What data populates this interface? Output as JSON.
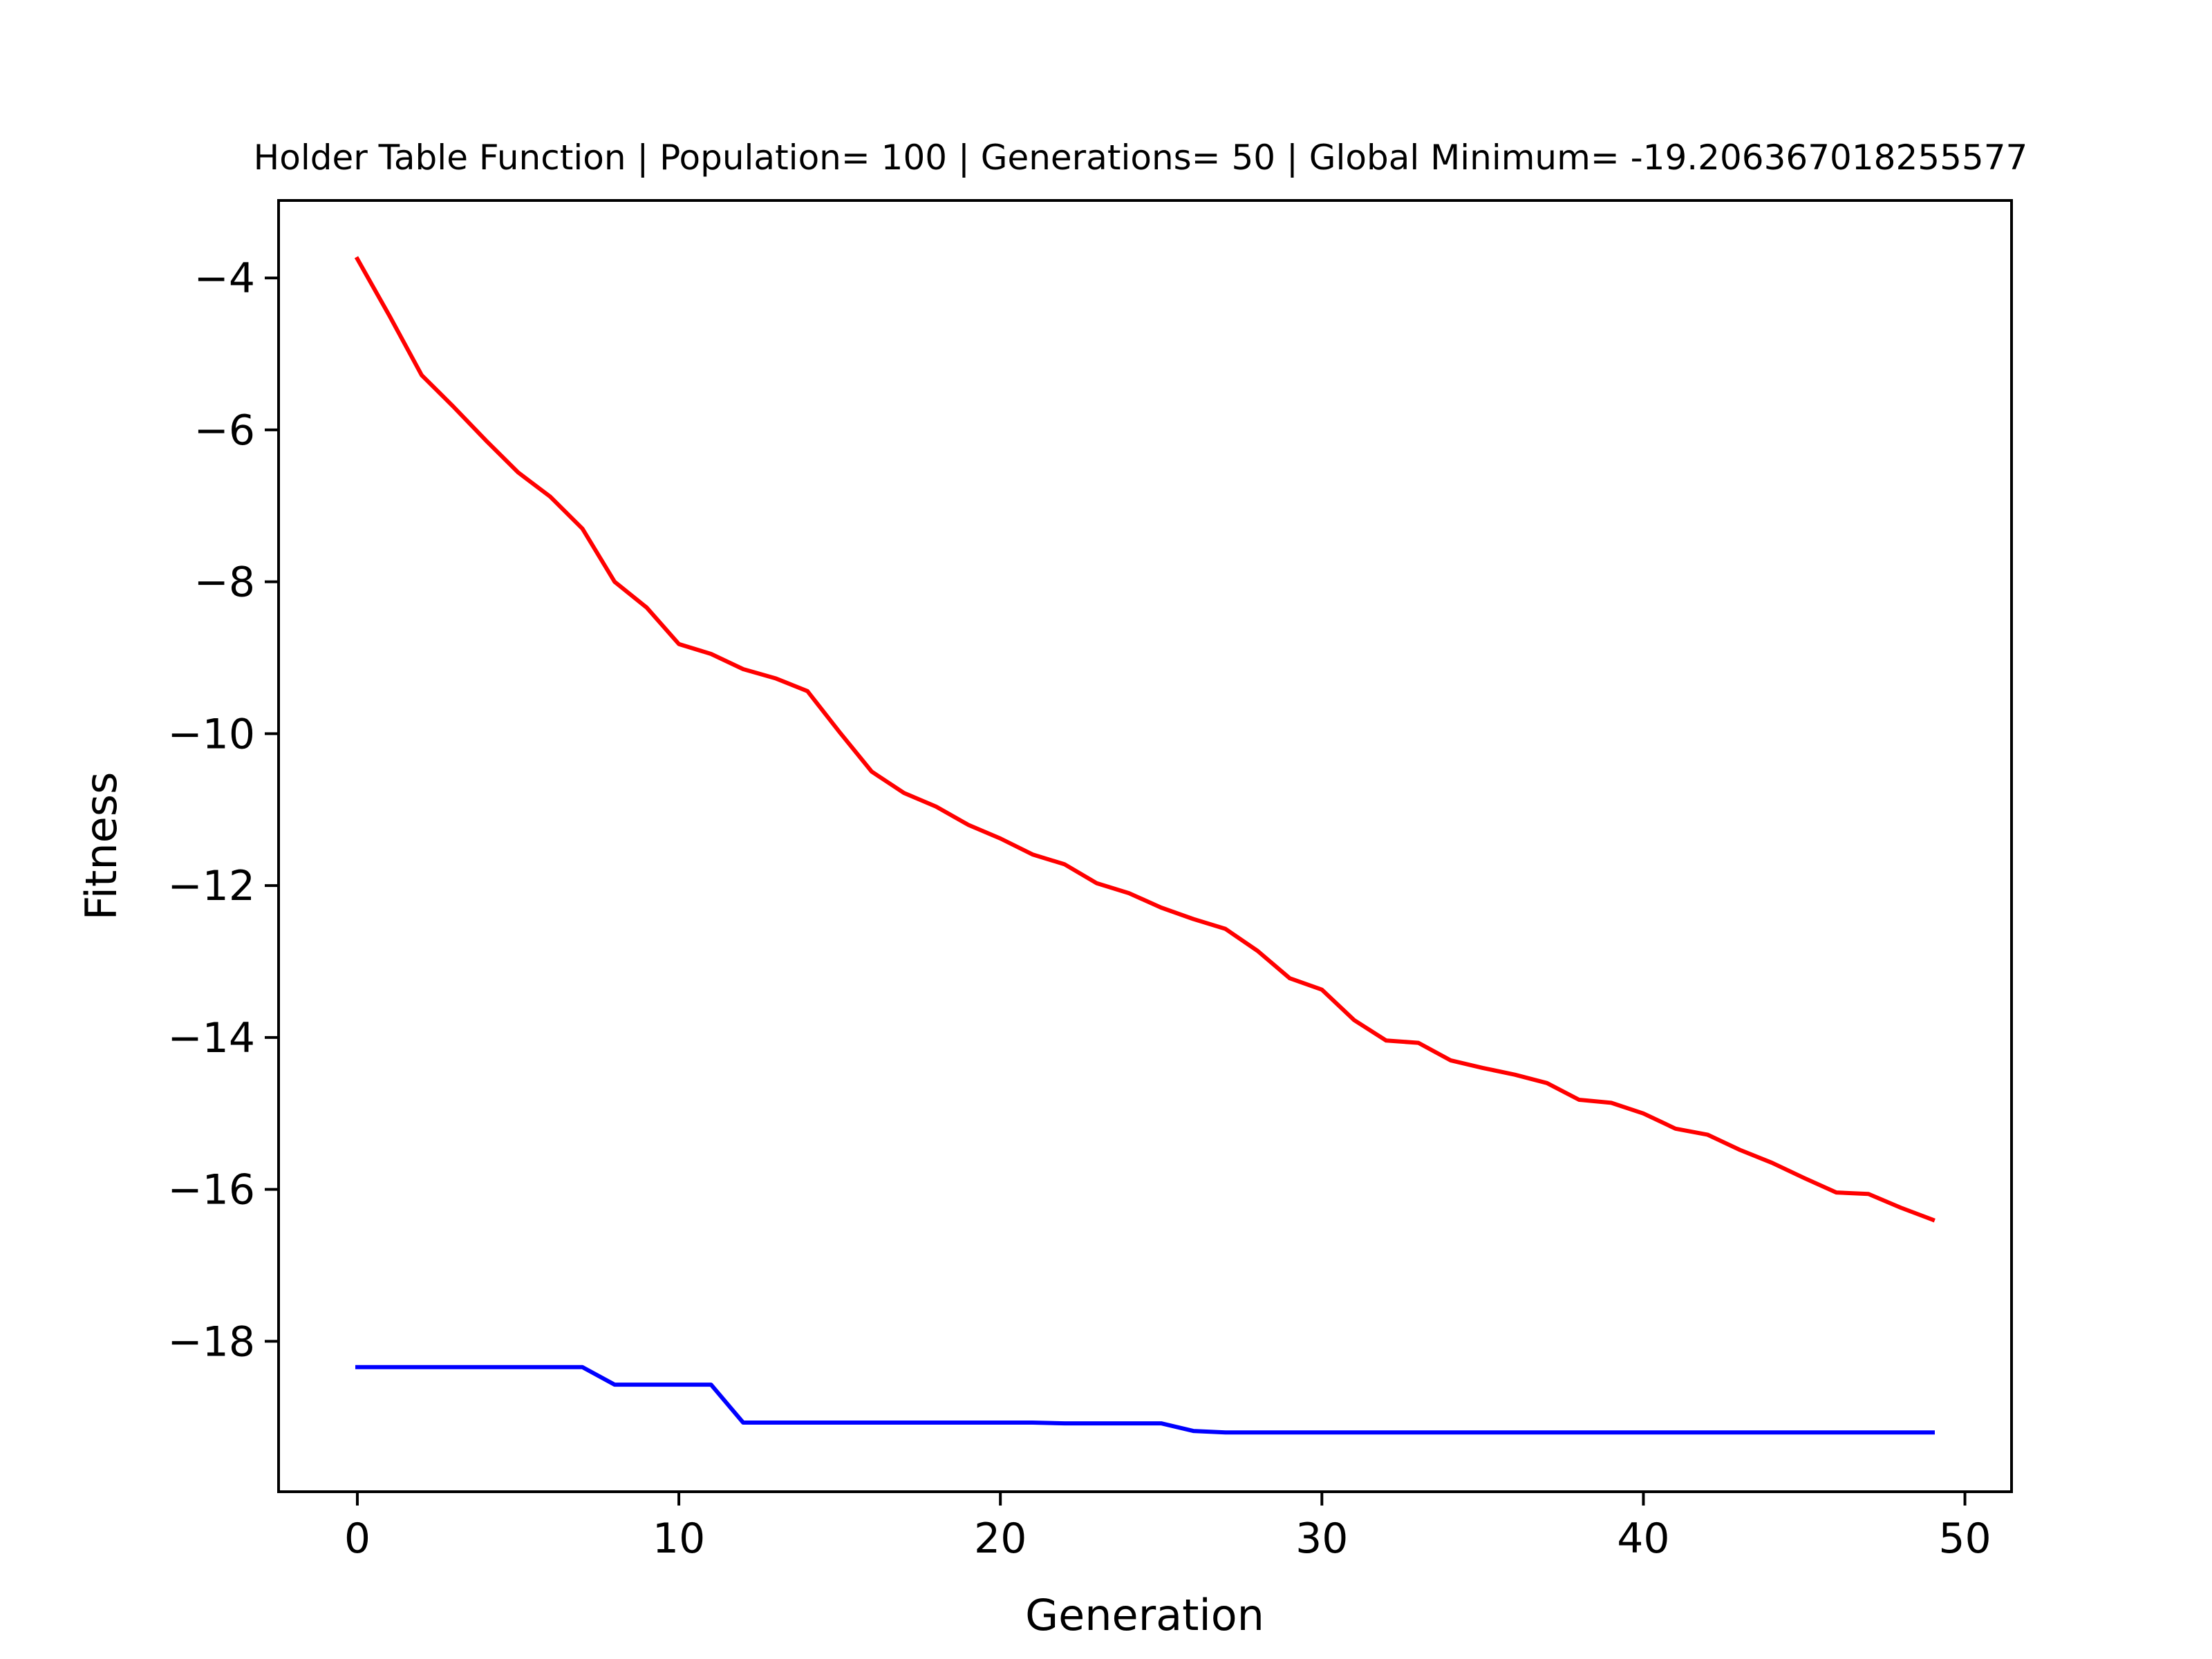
{
  "chart_data": {
    "type": "line",
    "title": "Holder Table Function | Population= 100 | Generations= 50 | Global Minimum= -19.206367018255577",
    "xlabel": "Generation",
    "ylabel": "Fitness",
    "xlim": [
      -2.45,
      51.45
    ],
    "ylim": [
      -19.98,
      -2.98
    ],
    "xticks": [
      0,
      10,
      20,
      30,
      40,
      50
    ],
    "xtick_labels": [
      "0",
      "10",
      "20",
      "30",
      "40",
      "50"
    ],
    "yticks": [
      -4,
      -6,
      -8,
      -10,
      -12,
      -14,
      -16,
      -18
    ],
    "ytick_labels": [
      "−4",
      "−6",
      "−8",
      "−10",
      "−12",
      "−14",
      "−16",
      "−18"
    ],
    "grid": false,
    "x": [
      0,
      1,
      2,
      3,
      4,
      5,
      6,
      7,
      8,
      9,
      10,
      11,
      12,
      13,
      14,
      15,
      16,
      17,
      18,
      19,
      20,
      21,
      22,
      23,
      24,
      25,
      26,
      27,
      28,
      29,
      30,
      31,
      32,
      33,
      34,
      35,
      36,
      37,
      38,
      39,
      40,
      41,
      42,
      43,
      44,
      45,
      46,
      47,
      48,
      49
    ],
    "series": [
      {
        "color": "#ff0000",
        "values": [
          -3.75,
          -4.5,
          -5.28,
          -5.7,
          -6.14,
          -6.56,
          -6.88,
          -7.3,
          -8.0,
          -8.34,
          -8.82,
          -8.95,
          -9.15,
          -9.27,
          -9.44,
          -9.98,
          -10.5,
          -10.78,
          -10.96,
          -11.2,
          -11.38,
          -11.59,
          -11.72,
          -11.97,
          -12.1,
          -12.29,
          -12.44,
          -12.57,
          -12.86,
          -13.22,
          -13.37,
          -13.77,
          -14.04,
          -14.07,
          -14.3,
          -14.4,
          -14.49,
          -14.6,
          -14.82,
          -14.86,
          -15.0,
          -15.2,
          -15.28,
          -15.48,
          -15.65,
          -15.85,
          -16.04,
          -16.06,
          -16.24,
          -16.4
        ]
      },
      {
        "color": "#0000ff",
        "values": [
          -18.34,
          -18.34,
          -18.34,
          -18.34,
          -18.34,
          -18.34,
          -18.34,
          -18.34,
          -18.57,
          -18.57,
          -18.57,
          -18.57,
          -19.07,
          -19.07,
          -19.07,
          -19.07,
          -19.07,
          -19.07,
          -19.07,
          -19.07,
          -19.07,
          -19.07,
          -19.08,
          -19.08,
          -19.08,
          -19.08,
          -19.18,
          -19.2,
          -19.2,
          -19.2,
          -19.2,
          -19.2,
          -19.2,
          -19.2,
          -19.2,
          -19.2,
          -19.2,
          -19.2,
          -19.2,
          -19.2,
          -19.2,
          -19.2,
          -19.2,
          -19.2,
          -19.2,
          -19.2,
          -19.2,
          -19.2,
          -19.2,
          -19.2
        ]
      }
    ]
  }
}
